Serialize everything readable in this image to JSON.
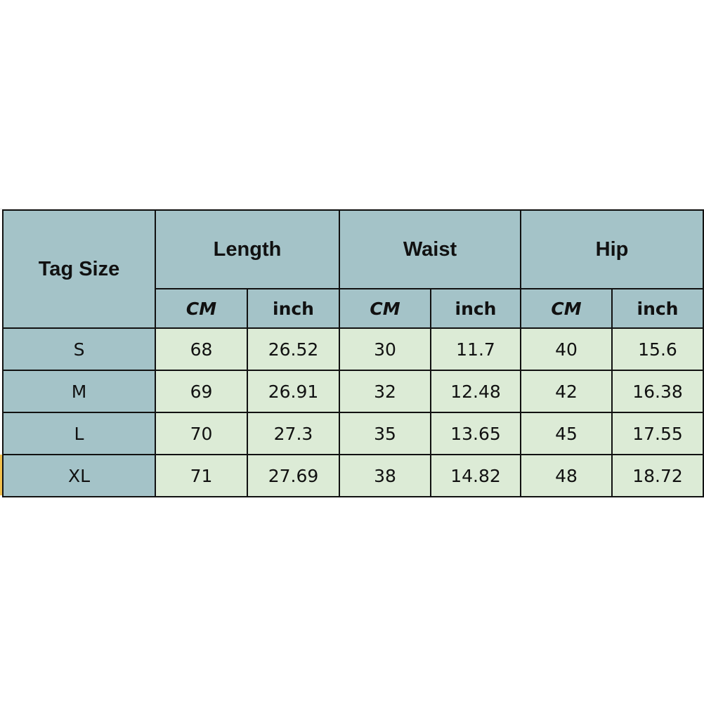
{
  "table": {
    "corner_header": "Tag Size",
    "groups": [
      "Length",
      "Waist",
      "Hip"
    ],
    "units": [
      "CM",
      "inch",
      "CM",
      "inch",
      "CM",
      "inch"
    ],
    "rows": [
      {
        "size": "S",
        "values": [
          "68",
          "26.52",
          "30",
          "11.7",
          "40",
          "15.6"
        ]
      },
      {
        "size": "M",
        "values": [
          "69",
          "26.91",
          "32",
          "12.48",
          "42",
          "16.38"
        ]
      },
      {
        "size": "L",
        "values": [
          "70",
          "27.3",
          "35",
          "13.65",
          "45",
          "17.55"
        ]
      },
      {
        "size": "XL",
        "values": [
          "71",
          "27.69",
          "38",
          "14.82",
          "48",
          "18.72"
        ]
      }
    ]
  },
  "colors": {
    "header_bg": "#a4c3c8",
    "cell_bg": "#dcebd6"
  }
}
